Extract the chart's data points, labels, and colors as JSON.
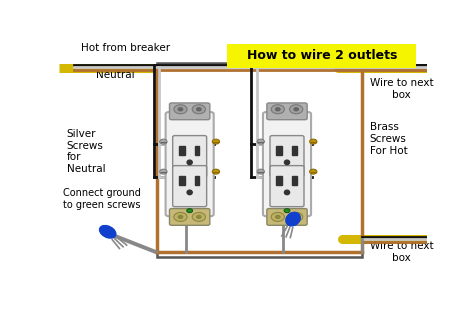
{
  "title": "How to wire 2 outlets",
  "title_bg": "#f5f500",
  "bg_color": "#ffffff",
  "labels": {
    "hot_from_breaker": "Hot from breaker",
    "neutral": "Neutral",
    "silver_screws": "Silver\nScrews\nfor\nNeutral",
    "connect_ground": "Connect ground\nto green screws",
    "brass_screws": "Brass\nScrews\nFor Hot",
    "wire_to_next_box_top": "Wire to next\nbox",
    "wire_to_next_box_bottom": "Wire to next\nbox"
  },
  "colors": {
    "bg": "#ffffff",
    "black_wire": "#111111",
    "white_wire": "#c8c8c8",
    "copper_wire": "#b07030",
    "yellow_cable": "#d4b800",
    "outlet_body": "#f2f2f2",
    "outlet_border": "#aaaaaa",
    "bracket_color": "#aaaaaa",
    "screw_silver": "#aaaaaa",
    "screw_brass": "#b8960a",
    "screw_green": "#228b22",
    "blue_connector": "#1040cc",
    "ground_screw_body": "#c8a060",
    "box_border": "#555555"
  },
  "o1x": 0.355,
  "o1y": 0.5,
  "o2x": 0.62,
  "o2y": 0.5,
  "ow": 0.115,
  "oh": 0.4
}
